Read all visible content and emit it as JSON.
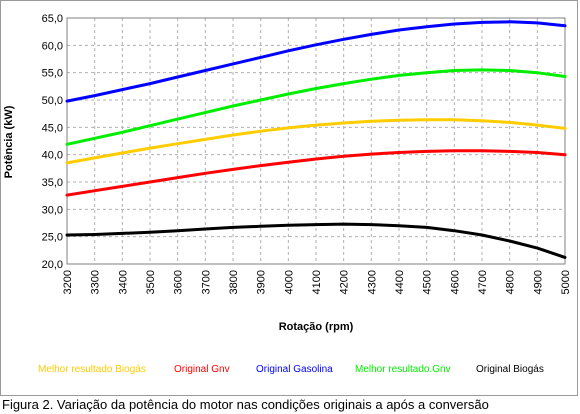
{
  "caption": "Figura 2. Variação da potência do motor nas condições originais a após a conversão",
  "chart_data": {
    "type": "line",
    "title": "",
    "xlabel": "Rotação (rpm)",
    "ylabel": "Potência (kW)",
    "xlim": [
      3200,
      5000
    ],
    "ylim": [
      20,
      65
    ],
    "x": [
      3200,
      3300,
      3400,
      3500,
      3600,
      3700,
      3800,
      3900,
      4000,
      4100,
      4200,
      4300,
      4400,
      4500,
      4600,
      4700,
      4800,
      4900,
      5000
    ],
    "x_tick_labels": [
      "3200",
      "3300",
      "3400",
      "3500",
      "3600",
      "3700",
      "3800",
      "3900",
      "4000",
      "4100",
      "4200",
      "4300",
      "4400",
      "4500",
      "4600",
      "4700",
      "4800",
      "4900",
      "5000"
    ],
    "y_ticks": [
      20,
      25,
      30,
      35,
      40,
      45,
      50,
      55,
      60,
      65
    ],
    "y_tick_labels": [
      "20,0",
      "25,0",
      "30,0",
      "35,0",
      "40,0",
      "45,0",
      "50,0",
      "55,0",
      "60,0",
      "65,0"
    ],
    "grid": true,
    "legend_position": "bottom",
    "series": [
      {
        "name": "Melhor resultado Biogás",
        "color": "#ffcc00",
        "values": [
          38.5,
          39.4,
          40.3,
          41.2,
          42.0,
          42.8,
          43.6,
          44.3,
          44.9,
          45.4,
          45.8,
          46.1,
          46.3,
          46.4,
          46.4,
          46.2,
          45.9,
          45.4,
          44.8
        ]
      },
      {
        "name": "Original Gnv",
        "color": "#ff0000",
        "values": [
          32.6,
          33.4,
          34.2,
          35.0,
          35.8,
          36.6,
          37.3,
          38.0,
          38.6,
          39.2,
          39.7,
          40.1,
          40.4,
          40.6,
          40.7,
          40.7,
          40.6,
          40.4,
          40.0
        ]
      },
      {
        "name": "Original Gasolina",
        "color": "#0000ff",
        "values": [
          49.8,
          50.8,
          51.9,
          53.0,
          54.2,
          55.4,
          56.6,
          57.8,
          59.0,
          60.1,
          61.1,
          62.0,
          62.8,
          63.4,
          63.9,
          64.2,
          64.3,
          64.1,
          63.6
        ]
      },
      {
        "name": "Melhor resultado.Gnv",
        "color": "#00ee00",
        "values": [
          41.9,
          43.0,
          44.1,
          45.3,
          46.5,
          47.7,
          48.9,
          50.0,
          51.1,
          52.1,
          53.0,
          53.8,
          54.5,
          55.0,
          55.4,
          55.5,
          55.4,
          55.0,
          54.3
        ]
      },
      {
        "name": "Original Biogás",
        "color": "#000000",
        "values": [
          25.3,
          25.4,
          25.6,
          25.8,
          26.1,
          26.4,
          26.7,
          26.9,
          27.1,
          27.2,
          27.3,
          27.2,
          27.0,
          26.7,
          26.1,
          25.3,
          24.2,
          22.9,
          21.2
        ]
      }
    ]
  }
}
